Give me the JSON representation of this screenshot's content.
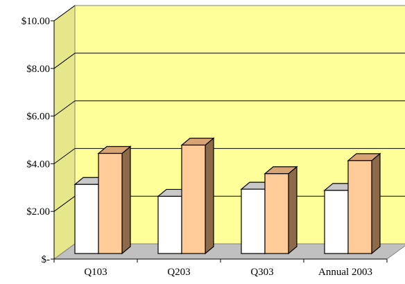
{
  "chart_data": {
    "type": "bar",
    "categories": [
      "Q103",
      "Q203",
      "Q303",
      "Annual 2003"
    ],
    "series": [
      {
        "values": [
          2.9,
          2.4,
          2.7,
          2.65
        ]
      },
      {
        "values": [
          4.2,
          4.55,
          3.35,
          3.9
        ]
      }
    ],
    "ylim": [
      0,
      10
    ],
    "y_ticks": [
      "$-",
      "$2.00",
      "$4.00",
      "$6.00",
      "$8.00",
      "$10.00"
    ],
    "grid": true,
    "legend": "none",
    "three_d": true
  },
  "colors": {
    "plot_back": "#ffff99",
    "plot_side": "#e6e68a",
    "floor": "#c0c0c0",
    "series_front": [
      "#ffffff",
      "#ffcc99"
    ],
    "series_top": [
      "#c8c8c8",
      "#d9a473"
    ],
    "series_side": [
      "#8c8c8c",
      "#8c6a4a"
    ]
  }
}
